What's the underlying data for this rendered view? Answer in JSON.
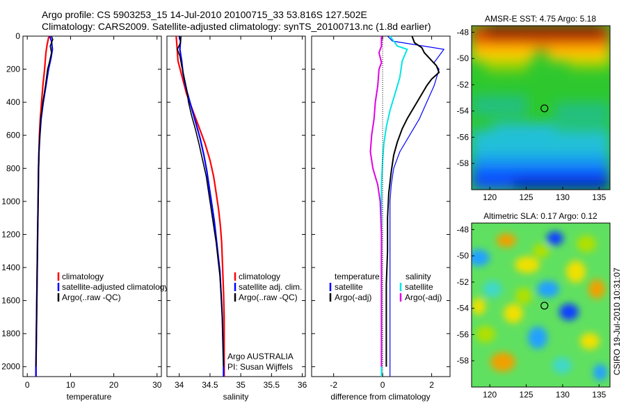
{
  "header": {
    "line1": "Argo profile: CS 5903253_15 14-Jul-2010 20100715_33 53.816S 127.502E",
    "line2": "Climatology: CARS2009. Satellite-adjusted climatology: synTS_20100713.nc (1.8d earlier)"
  },
  "side_label": "CSIRO 19-Jul-2010 10:31:07",
  "chart_data": [
    {
      "type": "line",
      "id": "temperature",
      "xlabel": "temperature",
      "xlim": [
        -1,
        31
      ],
      "ylim": [
        2060,
        0
      ],
      "xticks": [
        "0",
        "10",
        "20",
        "30"
      ],
      "yticks": [
        "0",
        "200",
        "400",
        "600",
        "800",
        "1000",
        "1200",
        "1400",
        "1600",
        "1800",
        "2000"
      ],
      "legend": [
        "climatology",
        "satellite-adjusted climatology",
        "Argo(..raw -QC)"
      ],
      "series": [
        {
          "name": "climatology",
          "color": "#ff0000",
          "width": 2.2,
          "points": [
            [
              5.0,
              0
            ],
            [
              4.6,
              50
            ],
            [
              4.3,
              100
            ],
            [
              4.0,
              200
            ],
            [
              3.6,
              300
            ],
            [
              3.3,
              400
            ],
            [
              3.0,
              500
            ],
            [
              2.8,
              600
            ],
            [
              2.7,
              700
            ],
            [
              2.6,
              800
            ],
            [
              2.5,
              1000
            ],
            [
              2.4,
              1200
            ],
            [
              2.3,
              1400
            ],
            [
              2.2,
              1600
            ],
            [
              2.1,
              1800
            ],
            [
              2.0,
              2000
            ],
            [
              2.0,
              2060
            ]
          ]
        },
        {
          "name": "satellite-adjusted climatology",
          "color": "#0000ff",
          "width": 2.2,
          "points": [
            [
              5.2,
              0
            ],
            [
              5.6,
              30
            ],
            [
              5.8,
              80
            ],
            [
              5.5,
              130
            ],
            [
              4.9,
              200
            ],
            [
              4.3,
              300
            ],
            [
              3.7,
              400
            ],
            [
              3.2,
              500
            ],
            [
              2.9,
              600
            ],
            [
              2.7,
              700
            ],
            [
              2.6,
              800
            ],
            [
              2.5,
              1000
            ],
            [
              2.4,
              1200
            ],
            [
              2.3,
              1400
            ],
            [
              2.2,
              1600
            ],
            [
              2.1,
              1800
            ],
            [
              2.0,
              2000
            ],
            [
              2.0,
              2060
            ]
          ]
        },
        {
          "name": "Argo(..raw -QC)",
          "color": "#000000",
          "width": 1.6,
          "points": [
            [
              5.6,
              0
            ],
            [
              5.9,
              20
            ],
            [
              5.3,
              60
            ],
            [
              5.6,
              100
            ],
            [
              5.1,
              160
            ],
            [
              4.7,
              200
            ],
            [
              4.2,
              300
            ],
            [
              3.6,
              400
            ],
            [
              3.1,
              500
            ],
            [
              2.9,
              600
            ],
            [
              2.7,
              700
            ],
            [
              2.6,
              800
            ],
            [
              2.5,
              1000
            ],
            [
              2.4,
              1200
            ],
            [
              2.3,
              1400
            ],
            [
              2.2,
              1600
            ],
            [
              2.1,
              1800
            ],
            [
              2.0,
              2000
            ]
          ]
        }
      ]
    },
    {
      "type": "line",
      "id": "salinity",
      "xlabel": "salinity",
      "xlim": [
        33.8,
        36.05
      ],
      "ylim": [
        2060,
        0
      ],
      "xticks": [
        "34",
        "34.5",
        "35",
        "35.5",
        "36"
      ],
      "legend": [
        "climatology",
        "satellite adj. clim.",
        "Argo(..raw -QC)"
      ],
      "annotations": [
        "Argo AUSTRALIA",
        "PI: Susan Wijffels"
      ],
      "series": [
        {
          "name": "climatology",
          "color": "#ff0000",
          "width": 2.2,
          "points": [
            [
              33.95,
              0
            ],
            [
              33.96,
              50
            ],
            [
              33.98,
              150
            ],
            [
              34.05,
              250
            ],
            [
              34.12,
              350
            ],
            [
              34.22,
              450
            ],
            [
              34.32,
              550
            ],
            [
              34.42,
              650
            ],
            [
              34.5,
              750
            ],
            [
              34.56,
              850
            ],
            [
              34.6,
              950
            ],
            [
              34.64,
              1050
            ],
            [
              34.67,
              1150
            ],
            [
              34.69,
              1250
            ],
            [
              34.7,
              1350
            ],
            [
              34.71,
              1450
            ],
            [
              34.72,
              1550
            ],
            [
              34.73,
              1700
            ],
            [
              34.73,
              1850
            ],
            [
              34.73,
              2000
            ],
            [
              34.73,
              2060
            ]
          ]
        },
        {
          "name": "satellite adj. clim.",
          "color": "#0000ff",
          "width": 2.2,
          "points": [
            [
              34.0,
              0
            ],
            [
              34.02,
              30
            ],
            [
              34.01,
              80
            ],
            [
              34.04,
              150
            ],
            [
              34.06,
              220
            ],
            [
              34.1,
              300
            ],
            [
              34.16,
              380
            ],
            [
              34.22,
              460
            ],
            [
              34.28,
              540
            ],
            [
              34.34,
              620
            ],
            [
              34.4,
              720
            ],
            [
              34.45,
              820
            ],
            [
              34.49,
              920
            ],
            [
              34.53,
              1020
            ],
            [
              34.57,
              1120
            ],
            [
              34.6,
              1220
            ],
            [
              34.63,
              1320
            ],
            [
              34.66,
              1420
            ],
            [
              34.68,
              1550
            ],
            [
              34.7,
              1700
            ],
            [
              34.71,
              1850
            ],
            [
              34.72,
              2000
            ],
            [
              34.72,
              2060
            ]
          ]
        },
        {
          "name": "Argo(..raw -QC)",
          "color": "#000000",
          "width": 1.6,
          "points": [
            [
              34.03,
              0
            ],
            [
              34.02,
              40
            ],
            [
              33.97,
              80
            ],
            [
              34.01,
              120
            ],
            [
              34.04,
              180
            ],
            [
              34.08,
              250
            ],
            [
              34.12,
              320
            ],
            [
              34.15,
              400
            ],
            [
              34.2,
              480
            ],
            [
              34.26,
              560
            ],
            [
              34.32,
              650
            ],
            [
              34.38,
              750
            ],
            [
              34.44,
              850
            ],
            [
              34.48,
              950
            ],
            [
              34.52,
              1050
            ],
            [
              34.56,
              1150
            ],
            [
              34.6,
              1250
            ],
            [
              34.63,
              1350
            ],
            [
              34.66,
              1450
            ],
            [
              34.68,
              1560
            ],
            [
              34.7,
              1700
            ],
            [
              34.71,
              1850
            ],
            [
              34.72,
              2000
            ]
          ]
        }
      ]
    },
    {
      "type": "line",
      "id": "difference",
      "xlabel": "difference from climatology",
      "xlim": [
        -2.9,
        2.75
      ],
      "ylim": [
        2060,
        0
      ],
      "xticks": [
        "-2",
        "0",
        "2"
      ],
      "legend": {
        "temperature_heading": "temperature",
        "salinity_heading": "salinity",
        "temperature": [
          "satellite",
          "Argo(-adj)"
        ],
        "salinity": [
          "satellite",
          "Argo(-adj)"
        ]
      },
      "series": [
        {
          "name": "temperature satellite",
          "color": "#0000ff",
          "width": 1.2,
          "points": [
            [
              0.2,
              0
            ],
            [
              0.4,
              30
            ],
            [
              2.5,
              80
            ],
            [
              2.3,
              120
            ],
            [
              2.1,
              160
            ],
            [
              2.3,
              200
            ],
            [
              2.1,
              300
            ],
            [
              1.8,
              400
            ],
            [
              1.5,
              500
            ],
            [
              1.1,
              600
            ],
            [
              0.7,
              700
            ],
            [
              0.45,
              800
            ],
            [
              0.35,
              900
            ],
            [
              0.3,
              1000
            ],
            [
              0.3,
              1200
            ],
            [
              0.3,
              1400
            ],
            [
              0.3,
              1600
            ],
            [
              0.3,
              1800
            ],
            [
              0.3,
              2000
            ],
            [
              0.3,
              2060
            ]
          ]
        },
        {
          "name": "temperature Argo(-adj)",
          "color": "#000000",
          "width": 2.0,
          "points": [
            [
              1.2,
              0
            ],
            [
              1.3,
              40
            ],
            [
              1.6,
              70
            ],
            [
              1.7,
              100
            ],
            [
              2.2,
              180
            ],
            [
              2.3,
              220
            ],
            [
              2.0,
              260
            ],
            [
              1.8,
              300
            ],
            [
              1.6,
              350
            ],
            [
              1.4,
              400
            ],
            [
              1.2,
              450
            ],
            [
              1.0,
              500
            ],
            [
              0.8,
              560
            ],
            [
              0.6,
              640
            ],
            [
              0.45,
              720
            ],
            [
              0.35,
              820
            ],
            [
              0.25,
              950
            ],
            [
              0.2,
              1100
            ],
            [
              0.2,
              1300
            ],
            [
              0.15,
              1500
            ],
            [
              0.15,
              1700
            ],
            [
              0.15,
              1900
            ],
            [
              0.15,
              2000
            ]
          ]
        },
        {
          "name": "salinity satellite",
          "color": "#00e5e5",
          "width": 2.0,
          "points": [
            [
              0.3,
              0
            ],
            [
              0.6,
              60
            ],
            [
              1.0,
              80
            ],
            [
              0.8,
              150
            ],
            [
              0.7,
              250
            ],
            [
              0.5,
              350
            ],
            [
              0.3,
              450
            ],
            [
              0.15,
              550
            ],
            [
              0.05,
              650
            ],
            [
              0.0,
              750
            ],
            [
              -0.05,
              900
            ],
            [
              -0.05,
              1100
            ],
            [
              -0.05,
              1300
            ],
            [
              -0.05,
              1500
            ],
            [
              -0.05,
              1700
            ],
            [
              -0.05,
              1900
            ],
            [
              -0.05,
              2060
            ]
          ]
        },
        {
          "name": "salinity Argo(-adj)",
          "color": "#e000e0",
          "width": 2.0,
          "points": [
            [
              -0.05,
              0
            ],
            [
              -0.05,
              60
            ],
            [
              -0.15,
              100
            ],
            [
              -0.05,
              160
            ],
            [
              -0.15,
              200
            ],
            [
              -0.2,
              300
            ],
            [
              -0.3,
              400
            ],
            [
              -0.35,
              500
            ],
            [
              -0.45,
              600
            ],
            [
              -0.5,
              700
            ],
            [
              -0.4,
              800
            ],
            [
              -0.2,
              900
            ],
            [
              -0.1,
              1000
            ],
            [
              -0.05,
              1200
            ],
            [
              -0.05,
              1400
            ],
            [
              -0.05,
              1600
            ],
            [
              -0.05,
              1800
            ],
            [
              -0.05,
              2000
            ]
          ]
        },
        {
          "name": "climatology",
          "color": "#000000",
          "width": 1.0,
          "dash": "1,2",
          "points": [
            [
              0,
              0
            ],
            [
              0,
              2060
            ]
          ]
        }
      ]
    },
    {
      "type": "heatmap",
      "id": "sst",
      "title": "AMSR-E SST: 4.75 Argo: 5.18",
      "xlim": [
        117.5,
        136.5
      ],
      "ylim": [
        -60.0,
        -47.5
      ],
      "xticks": [
        "120",
        "125",
        "130",
        "135"
      ],
      "yticks": [
        "-48",
        "-50",
        "-52",
        "-54",
        "-56",
        "-58"
      ],
      "marker": {
        "lon": 127.5,
        "lat": -53.8
      },
      "colors": [
        "#a00000",
        "#e04000",
        "#ff8c00",
        "#ffd200",
        "#9cd200",
        "#2ec82e",
        "#20c080",
        "#20c0d8",
        "#1898f0",
        "#1050ff",
        "#0010c0"
      ]
    },
    {
      "type": "heatmap",
      "id": "sla",
      "title": "Altimetric SLA: 0.17 Argo: 0.12",
      "xlim": [
        117.5,
        136.5
      ],
      "ylim": [
        -60.0,
        -47.5
      ],
      "xticks": [
        "120",
        "125",
        "130",
        "135"
      ],
      "yticks": [
        "-48",
        "-50",
        "-52",
        "-54",
        "-56",
        "-58"
      ],
      "marker": {
        "lon": 127.5,
        "lat": -53.8
      },
      "colors": [
        "#1040ff",
        "#20a0ff",
        "#40d8c8",
        "#60e060",
        "#30c830",
        "#b0e000",
        "#f0e000",
        "#f0a000",
        "#e06000"
      ]
    }
  ]
}
